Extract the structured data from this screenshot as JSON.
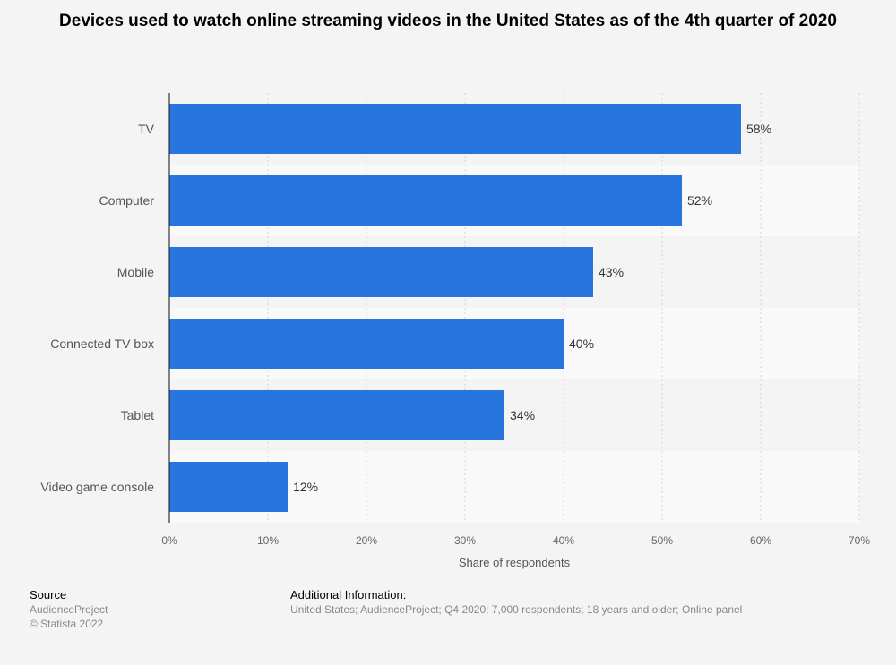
{
  "chart_data": {
    "type": "bar",
    "orientation": "horizontal",
    "title": "Devices used to watch online streaming videos in the United States as of the 4th quarter of 2020",
    "xlabel": "Share of respondents",
    "ylabel": "",
    "categories": [
      "TV",
      "Computer",
      "Mobile",
      "Connected TV box",
      "Tablet",
      "Video game console"
    ],
    "values": [
      58,
      52,
      43,
      40,
      34,
      12
    ],
    "value_labels": [
      "58%",
      "52%",
      "43%",
      "40%",
      "34%",
      "12%"
    ],
    "xlim": [
      0,
      70
    ],
    "ticks": [
      0,
      10,
      20,
      30,
      40,
      50,
      60,
      70
    ],
    "tick_labels": [
      "0%",
      "10%",
      "20%",
      "30%",
      "40%",
      "50%",
      "60%",
      "70%"
    ],
    "grid": true,
    "legend": "none",
    "bar_color": "#2876dd"
  },
  "footer": {
    "source_heading": "Source",
    "source_lines": [
      "AudienceProject",
      "© Statista 2022"
    ],
    "info_heading": "Additional Information:",
    "info_text": "United States; AudienceProject; Q4 2020; 7,000 respondents; 18 years and older; Online panel"
  }
}
